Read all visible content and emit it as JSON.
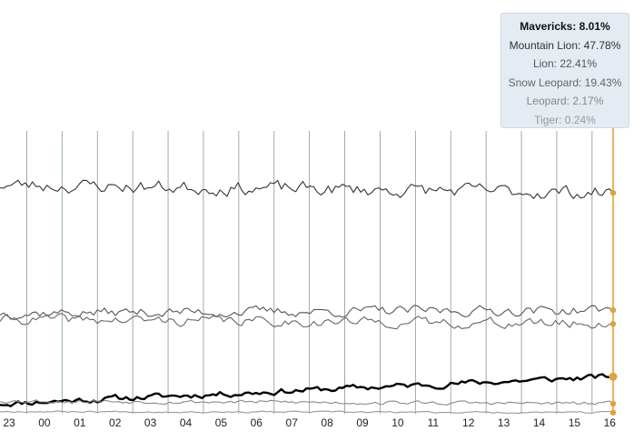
{
  "chart_data": {
    "type": "line",
    "x_ticks": [
      "23",
      "00",
      "01",
      "02",
      "03",
      "04",
      "05",
      "06",
      "07",
      "08",
      "09",
      "10",
      "11",
      "12",
      "13",
      "14",
      "15",
      "16"
    ],
    "ylim": [
      0,
      60
    ],
    "grid": {
      "vertical": true,
      "horizontal": false
    },
    "series": [
      {
        "name": "Mavericks",
        "value": 8.01,
        "color": "#000000",
        "start": 2.2,
        "end": 8.01,
        "wiggle": 0.55,
        "seed": 11,
        "highlight": true
      },
      {
        "name": "Mountain Lion",
        "value": 47.78,
        "color": "#333333",
        "start": 49.5,
        "end": 47.78,
        "wiggle": 1.25,
        "seed": 23,
        "highlight": false
      },
      {
        "name": "Lion",
        "value": 22.41,
        "color": "#555555",
        "start": 21.8,
        "end": 22.41,
        "wiggle": 0.9,
        "seed": 37,
        "highlight": false
      },
      {
        "name": "Snow Leopard",
        "value": 19.43,
        "color": "#666666",
        "start": 20.4,
        "end": 19.43,
        "wiggle": 0.9,
        "seed": 41,
        "highlight": false
      },
      {
        "name": "Leopard",
        "value": 2.17,
        "color": "#888888",
        "start": 2.8,
        "end": 2.17,
        "wiggle": 0.35,
        "seed": 53,
        "highlight": false
      },
      {
        "name": "Tiger",
        "value": 0.24,
        "color": "#999999",
        "start": 0.5,
        "end": 0.24,
        "wiggle": 0.15,
        "seed": 67,
        "highlight": false
      }
    ],
    "focus_marker_color": "#e0a141"
  },
  "tooltip": {
    "title": "Mavericks: 8.01%",
    "rows": [
      "Mountain Lion: 47.78%",
      "Lion: 22.41%",
      "Snow Leopard: 19.43%",
      "Leopard: 2.17%",
      "Tiger: 0.24%"
    ],
    "row_colors": [
      "#333333",
      "#555555",
      "#666666",
      "#888888",
      "#999999"
    ]
  }
}
